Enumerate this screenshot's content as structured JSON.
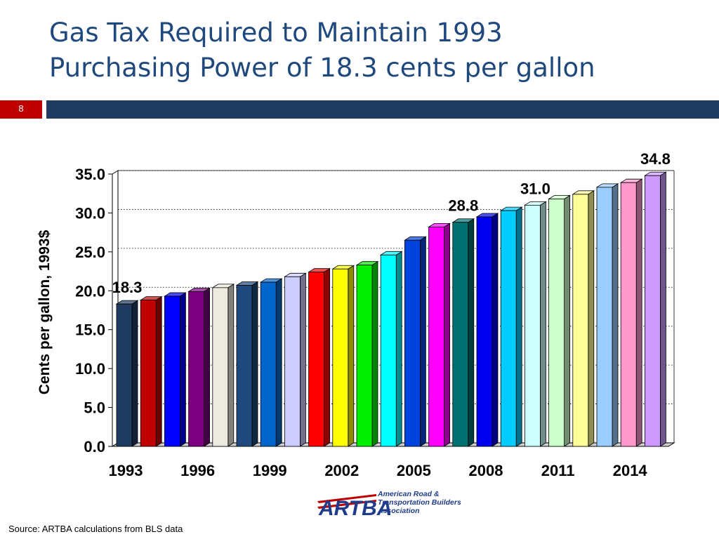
{
  "slide": {
    "title_line1": "Gas Tax  Required to Maintain 1993",
    "title_line2": "Purchasing Power of 18.3 cents per gallon",
    "number": "8",
    "source": "Source: ARTBA calculations from BLS data"
  },
  "logo": {
    "mark": "ARTBA",
    "line1": "American Road &",
    "line2": "Transportation Builders",
    "line3": "Association"
  },
  "chart_data": {
    "type": "bar",
    "ylabel": "Cents per gallon, 1993$",
    "ylim": [
      0,
      35
    ],
    "yticks": [
      0,
      5,
      10,
      15,
      20,
      25,
      30,
      35
    ],
    "ytick_labels": [
      "0.0",
      "5.0",
      "10.0",
      "15.0",
      "20.0",
      "25.0",
      "30.0",
      "35.0"
    ],
    "grid": "horizontal dotted",
    "categories": [
      1993,
      1994,
      1995,
      1996,
      1997,
      1998,
      1999,
      2000,
      2001,
      2002,
      2003,
      2004,
      2005,
      2006,
      2007,
      2008,
      2009,
      2010,
      2011,
      2012,
      2013,
      2014,
      2015
    ],
    "xtick_labels": [
      "1993",
      "1996",
      "1999",
      "2002",
      "2005",
      "2008",
      "2011",
      "2014"
    ],
    "values": [
      18.3,
      18.8,
      19.3,
      19.9,
      20.4,
      20.7,
      21.1,
      21.8,
      22.4,
      22.8,
      23.3,
      24.6,
      26.5,
      28.2,
      28.8,
      29.5,
      30.3,
      31.0,
      31.8,
      32.4,
      33.3,
      33.9,
      34.8
    ],
    "colors": [
      "#1F3B61",
      "#C00000",
      "#0000FF",
      "#7B0080",
      "#EDEADF",
      "#1F497D",
      "#0066CC",
      "#CCCCFF",
      "#FF0000",
      "#FFFF00",
      "#00EE00",
      "#00FFFF",
      "#0044DD",
      "#FF00FF",
      "#007070",
      "#0000EE",
      "#00CCFF",
      "#CCFFFF",
      "#CCFFCC",
      "#FFFF99",
      "#99CCFF",
      "#FF99CC",
      "#CC99FF"
    ],
    "data_labels": [
      {
        "index": 0,
        "text": "18.3"
      },
      {
        "index": 14,
        "text": "28.8"
      },
      {
        "index": 17,
        "text": "31.0"
      },
      {
        "index": 22,
        "text": "34.8"
      }
    ]
  }
}
